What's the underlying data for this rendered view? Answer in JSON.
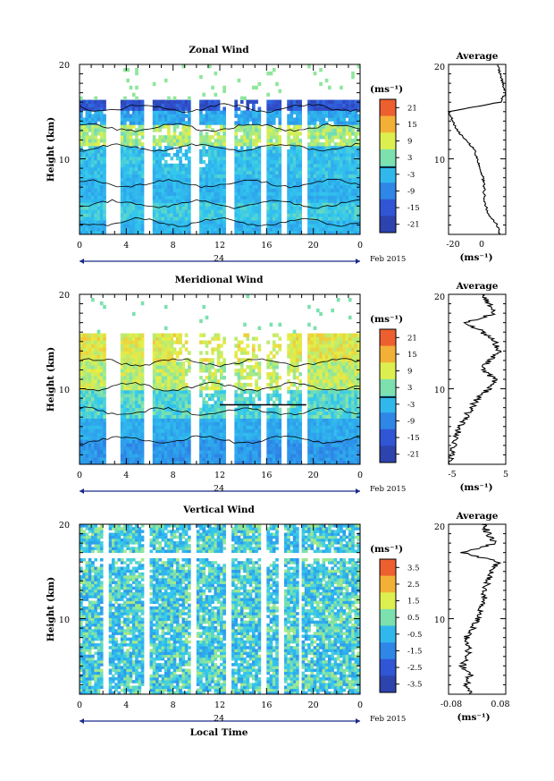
{
  "panels": [
    {
      "key": "zonal",
      "title": "Zonal Wind",
      "ylabel": "Height (km)",
      "y_ticks": [
        "20",
        "10"
      ],
      "x_ticks": [
        "0",
        "4",
        "8",
        "12",
        "16",
        "20",
        "0"
      ],
      "date_label": "24",
      "month_year": "Feb 2015",
      "colorbar": {
        "unit": "(ms⁻¹)",
        "ticks": [
          "21",
          "15",
          "9",
          "3",
          "-3",
          "-9",
          "-15",
          "-21"
        ],
        "range": [
          -24,
          24
        ]
      },
      "avg": {
        "title": "Average",
        "y_ticks": [
          "20",
          "10"
        ],
        "x_ticks": [
          "-20",
          "0"
        ],
        "xlim": [
          -28,
          12
        ],
        "unit": "(ms⁻¹)"
      }
    },
    {
      "key": "meridional",
      "title": "Meridional Wind",
      "ylabel": "Height (km)",
      "y_ticks": [
        "20",
        "10"
      ],
      "x_ticks": [
        "0",
        "4",
        "8",
        "12",
        "16",
        "20",
        "0"
      ],
      "date_label": "24",
      "month_year": "Feb 2015",
      "colorbar": {
        "unit": "(ms⁻¹)",
        "ticks": [
          "21",
          "15",
          "9",
          "3",
          "-3",
          "-9",
          "-15",
          "-21"
        ],
        "range": [
          -24,
          24
        ]
      },
      "avg": {
        "title": "Average",
        "y_ticks": [
          "20",
          "10"
        ],
        "x_ticks": [
          "-5",
          "5"
        ],
        "xlim": [
          -5,
          5
        ],
        "unit": "(ms⁻¹)"
      }
    },
    {
      "key": "vertical",
      "title": "Vertical Wind",
      "ylabel": "Height (km)",
      "y_ticks": [
        "20",
        "10"
      ],
      "x_ticks": [
        "0",
        "4",
        "8",
        "12",
        "16",
        "20",
        "0"
      ],
      "date_label": "24",
      "month_year": "Feb 2015",
      "xlabel": "Local Time",
      "colorbar": {
        "unit": "(ms⁻¹)",
        "ticks": [
          "3.5",
          "2.5",
          "1.5",
          "0.5",
          "-0.5",
          "-1.5",
          "-2.5",
          "-3.5"
        ],
        "range": [
          -4,
          4
        ]
      },
      "avg": {
        "title": "Average",
        "y_ticks": [
          "20",
          "10"
        ],
        "x_ticks": [
          "-0.08",
          "0.08"
        ],
        "xlim": [
          -0.08,
          0.08
        ],
        "unit": "(ms⁻¹)"
      }
    }
  ],
  "chart_data": [
    {
      "type": "heatmap",
      "title": "Zonal Wind",
      "xlabel": "",
      "ylabel": "Height (km)",
      "xlim_hours": [
        0,
        24
      ],
      "ylim_km": [
        2,
        20
      ],
      "color_range_ms": [
        -24,
        24
      ],
      "data_gaps_hours": [
        [
          2.2,
          3.4
        ],
        [
          5.5,
          6.3
        ],
        [
          9.6,
          10.2
        ],
        [
          12.5,
          13.3
        ],
        [
          15.6,
          16.0
        ],
        [
          17.3,
          17.7
        ],
        [
          18.9,
          19.4
        ]
      ],
      "profile_height_km": [
        2,
        3,
        4,
        5,
        6,
        7,
        8,
        9,
        10,
        11,
        12,
        13,
        14,
        15,
        16,
        17,
        18,
        19,
        20
      ],
      "profile_ms": [
        8,
        6,
        0,
        -2,
        -3,
        -3,
        -4,
        -6,
        -8,
        -10,
        -16,
        -22,
        -25,
        -28,
        8,
        12,
        10,
        8,
        6
      ]
    },
    {
      "type": "heatmap",
      "title": "Meridional Wind",
      "xlabel": "",
      "ylabel": "Height (km)",
      "xlim_hours": [
        0,
        24
      ],
      "ylim_km": [
        2,
        20
      ],
      "color_range_ms": [
        -24,
        24
      ],
      "data_gaps_hours": [
        [
          2.2,
          3.4
        ],
        [
          5.5,
          6.3
        ],
        [
          9.6,
          10.2
        ],
        [
          12.5,
          13.3
        ],
        [
          15.6,
          16.0
        ],
        [
          17.3,
          17.7
        ],
        [
          18.9,
          19.4
        ]
      ],
      "profile_height_km": [
        2,
        3,
        4,
        5,
        6,
        7,
        8,
        9,
        10,
        11,
        12,
        13,
        14,
        15,
        16,
        17,
        18,
        19,
        20
      ],
      "profile_ms": [
        -5,
        -4.5,
        -4,
        -3.5,
        -3,
        -2,
        -1,
        0,
        2,
        3,
        1,
        2,
        4,
        3,
        1,
        -2,
        3,
        2,
        1
      ]
    },
    {
      "type": "heatmap",
      "title": "Vertical Wind",
      "xlabel": "Local Time",
      "ylabel": "Height (km)",
      "xlim_hours": [
        0,
        24
      ],
      "ylim_km": [
        2,
        20
      ],
      "color_range_ms": [
        -4,
        4
      ],
      "data_gaps_hours": [
        [
          2.0,
          2.6
        ],
        [
          5.5,
          6.1
        ],
        [
          9.6,
          10.0
        ],
        [
          12.4,
          13.1
        ],
        [
          15.5,
          15.9
        ],
        [
          17.1,
          17.5
        ],
        [
          18.7,
          19.1
        ]
      ],
      "profile_height_km": [
        2,
        3,
        4,
        5,
        6,
        7,
        8,
        9,
        10,
        11,
        12,
        13,
        14,
        15,
        16,
        17,
        18,
        19,
        20
      ],
      "profile_ms": [
        -0.02,
        -0.03,
        -0.02,
        -0.04,
        -0.03,
        -0.02,
        -0.03,
        -0.01,
        0.0,
        0.01,
        0.02,
        0.02,
        0.03,
        0.04,
        0.06,
        -0.04,
        0.05,
        0.03,
        0.02
      ]
    }
  ]
}
